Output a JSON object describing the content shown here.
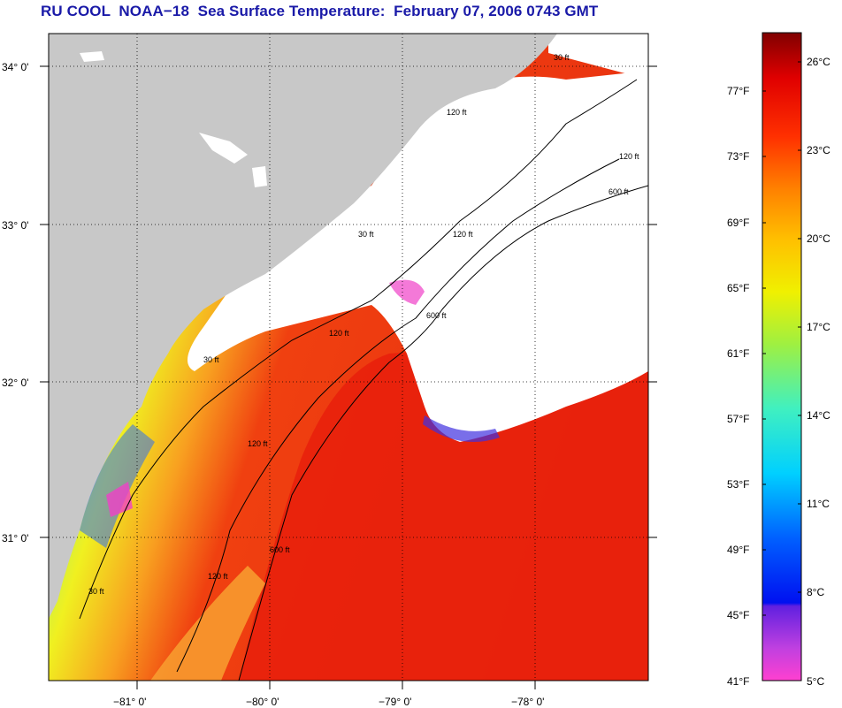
{
  "title": "RU COOL  NOAA−18  Sea Surface Temperature:  February 07, 2006 0743 GMT",
  "axes": {
    "lat_labels": [
      "34° 0'",
      "33° 0'",
      "32° 0'",
      "31° 0'"
    ],
    "lon_labels": [
      "−81° 0'",
      "−80° 0'",
      "−79° 0'",
      "−78° 0'"
    ]
  },
  "contour_labels": [
    "30 ft",
    "30 ft",
    "30 ft",
    "30 ft",
    "120 ft",
    "120 ft",
    "120 ft",
    "120 ft",
    "120 ft",
    "120 ft",
    "600 ft",
    "600 ft",
    "600 ft"
  ],
  "colorbar": {
    "fahrenheit": [
      "77°F",
      "73°F",
      "69°F",
      "65°F",
      "61°F",
      "57°F",
      "53°F",
      "49°F",
      "45°F",
      "41°F"
    ],
    "celsius": [
      "26°C",
      "23°C",
      "20°C",
      "17°C",
      "14°C",
      "11°C",
      "8°C",
      "5°C"
    ]
  },
  "colors": {
    "land": "#c8c8c8",
    "cloud": "#ffffff",
    "title": "#1a1aa8",
    "warm": "#e8200c",
    "cool": "#20e0e8"
  }
}
